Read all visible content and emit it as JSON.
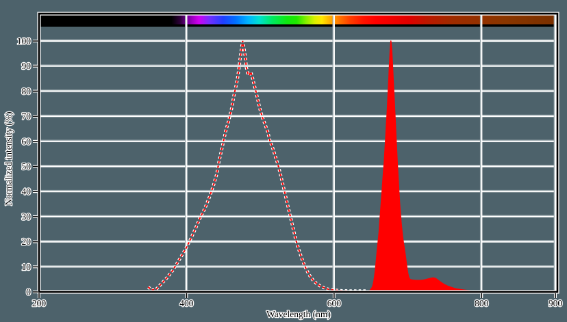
{
  "figure": {
    "background_color": "#4d626b",
    "frame_color": "#000000",
    "frame_halo_color": "#ffffff",
    "grid_color": "#ffffff",
    "grid_shadow_color": "#9aa8ad",
    "text_color": "#000000",
    "text_halo_color": "#ffffff",
    "curve_color": "#ff0000"
  },
  "chart_data": {
    "type": "area",
    "title": "",
    "xlabel": "Wavelength (nm)",
    "ylabel": "Normalized intensity (%)",
    "xlim": [
      200,
      900
    ],
    "ylim": [
      0,
      111
    ],
    "grid": true,
    "legend": "none",
    "x_ticks": [
      200,
      400,
      600,
      800,
      900
    ],
    "y_ticks": [
      0,
      10,
      20,
      30,
      40,
      50,
      60,
      70,
      80,
      90,
      100
    ],
    "x_gridlines": [
      400,
      600,
      800,
      900
    ],
    "series": [
      {
        "name": "blue-emission-dashed",
        "style": "dashed-line",
        "color": "#ff0000",
        "peak_nm": 476,
        "points": [
          [
            348,
            1.9
          ],
          [
            353,
            0.8
          ],
          [
            359,
            1.1
          ],
          [
            366,
            3.3
          ],
          [
            374,
            5.8
          ],
          [
            381,
            8.5
          ],
          [
            388,
            11.8
          ],
          [
            394,
            14.8
          ],
          [
            400,
            17.8
          ],
          [
            406,
            21.4
          ],
          [
            412,
            25.2
          ],
          [
            418,
            29.3
          ],
          [
            425,
            33.4
          ],
          [
            431,
            37.8
          ],
          [
            436,
            42
          ],
          [
            441,
            47
          ],
          [
            444,
            52
          ],
          [
            447,
            56
          ],
          [
            450,
            60
          ],
          [
            453,
            64
          ],
          [
            457,
            68
          ],
          [
            461,
            73
          ],
          [
            464,
            78
          ],
          [
            467,
            82
          ],
          [
            469,
            85
          ],
          [
            471,
            89
          ],
          [
            473,
            94
          ],
          [
            475,
            98
          ],
          [
            476,
            100
          ],
          [
            478,
            97
          ],
          [
            480,
            93
          ],
          [
            481,
            89.5
          ],
          [
            483,
            87.2
          ],
          [
            485,
            86.3
          ],
          [
            487,
            87.7
          ],
          [
            489,
            85.8
          ],
          [
            491,
            83.4
          ],
          [
            494,
            79.9
          ],
          [
            497,
            76.1
          ],
          [
            500,
            72.4
          ],
          [
            503,
            69.4
          ],
          [
            506,
            67.1
          ],
          [
            510,
            63.9
          ],
          [
            513,
            60.3
          ],
          [
            517,
            57.1
          ],
          [
            521,
            53.4
          ],
          [
            524,
            50.7
          ],
          [
            528,
            46
          ],
          [
            532,
            41
          ],
          [
            536,
            36
          ],
          [
            540,
            31
          ],
          [
            544,
            26
          ],
          [
            548,
            21
          ],
          [
            552,
            17
          ],
          [
            556,
            13.5
          ],
          [
            560,
            10.5
          ],
          [
            564,
            8
          ],
          [
            568,
            6
          ],
          [
            572,
            4.5
          ],
          [
            576,
            3.4
          ],
          [
            581,
            2.4
          ],
          [
            586,
            1.7
          ],
          [
            592,
            1.1
          ],
          [
            600,
            0.7
          ],
          [
            610,
            0.5
          ],
          [
            620,
            0.4
          ],
          [
            632,
            0.4
          ],
          [
            645,
            0.4
          ]
        ]
      },
      {
        "name": "red-emission-filled",
        "style": "filled-area",
        "color": "#ff0000",
        "peak_nm": 677,
        "points": [
          [
            648,
            0.5
          ],
          [
            650,
            1
          ],
          [
            652,
            2
          ],
          [
            653,
            3
          ],
          [
            654,
            4.5
          ],
          [
            655,
            6.5
          ],
          [
            656,
            9
          ],
          [
            657,
            12
          ],
          [
            658,
            15
          ],
          [
            659,
            18
          ],
          [
            660,
            21
          ],
          [
            661,
            24
          ],
          [
            662,
            28
          ],
          [
            663,
            32
          ],
          [
            664,
            36
          ],
          [
            665,
            40
          ],
          [
            666,
            44
          ],
          [
            667,
            48
          ],
          [
            668,
            52
          ],
          [
            669,
            57
          ],
          [
            670,
            62
          ],
          [
            671,
            67
          ],
          [
            672,
            72
          ],
          [
            673,
            78
          ],
          [
            674,
            84
          ],
          [
            675,
            90
          ],
          [
            676,
            96
          ],
          [
            677,
            100
          ],
          [
            678,
            97
          ],
          [
            679,
            92
          ],
          [
            680,
            86
          ],
          [
            681,
            80
          ],
          [
            682,
            74
          ],
          [
            683,
            68
          ],
          [
            684,
            62
          ],
          [
            685,
            56
          ],
          [
            686,
            50
          ],
          [
            687,
            45
          ],
          [
            688,
            40
          ],
          [
            689,
            35
          ],
          [
            690,
            31
          ],
          [
            691,
            27.5
          ],
          [
            692,
            24.5
          ],
          [
            693,
            22
          ],
          [
            694,
            19.8
          ],
          [
            695,
            17.8
          ],
          [
            696,
            15.8
          ],
          [
            697,
            13.8
          ],
          [
            698,
            11.5
          ],
          [
            699,
            9.2
          ],
          [
            700,
            7.4
          ],
          [
            701,
            6.2
          ],
          [
            702,
            5.4
          ],
          [
            703,
            5
          ],
          [
            705,
            4.8
          ],
          [
            708,
            4.7
          ],
          [
            712,
            4.6
          ],
          [
            716,
            4.6
          ],
          [
            720,
            4.7
          ],
          [
            724,
            4.9
          ],
          [
            728,
            5.2
          ],
          [
            732,
            5.5
          ],
          [
            735,
            5.6
          ],
          [
            738,
            5.3
          ],
          [
            741,
            4.7
          ],
          [
            744,
            4
          ],
          [
            747,
            3.4
          ],
          [
            750,
            2.9
          ],
          [
            754,
            2.3
          ],
          [
            758,
            1.9
          ],
          [
            762,
            1.5
          ],
          [
            766,
            1.2
          ],
          [
            770,
            1
          ],
          [
            775,
            0.8
          ],
          [
            780,
            0.6
          ],
          [
            785,
            0.5
          ],
          [
            790,
            0.4
          ],
          [
            793,
            0.3
          ]
        ]
      }
    ],
    "spectrum_bar": {
      "description": "visible-light-spectrum-strip",
      "range_nm": [
        200,
        900
      ],
      "stops": [
        {
          "nm": 200,
          "color": "#000000"
        },
        {
          "nm": 378,
          "color": "#000000"
        },
        {
          "nm": 390,
          "color": "#30003c"
        },
        {
          "nm": 400,
          "color": "#7a00a0"
        },
        {
          "nm": 415,
          "color": "#d000f0"
        },
        {
          "nm": 430,
          "color": "#7030ff"
        },
        {
          "nm": 448,
          "color": "#2040ff"
        },
        {
          "nm": 465,
          "color": "#0070ff"
        },
        {
          "nm": 482,
          "color": "#00b4ff"
        },
        {
          "nm": 497,
          "color": "#00e0d0"
        },
        {
          "nm": 515,
          "color": "#00e860"
        },
        {
          "nm": 535,
          "color": "#10e810"
        },
        {
          "nm": 548,
          "color": "#20e800"
        },
        {
          "nm": 560,
          "color": "#80f000"
        },
        {
          "nm": 572,
          "color": "#d8f000"
        },
        {
          "nm": 582,
          "color": "#ffe800"
        },
        {
          "nm": 592,
          "color": "#ffb400"
        },
        {
          "nm": 605,
          "color": "#ff7800"
        },
        {
          "nm": 620,
          "color": "#ff4000"
        },
        {
          "nm": 638,
          "color": "#ff1400"
        },
        {
          "nm": 655,
          "color": "#ff0000"
        },
        {
          "nm": 700,
          "color": "#e00000"
        },
        {
          "nm": 725,
          "color": "#bc1800"
        },
        {
          "nm": 760,
          "color": "#9e2c00"
        },
        {
          "nm": 830,
          "color": "#8a3600"
        },
        {
          "nm": 900,
          "color": "#7a3000"
        }
      ]
    }
  }
}
